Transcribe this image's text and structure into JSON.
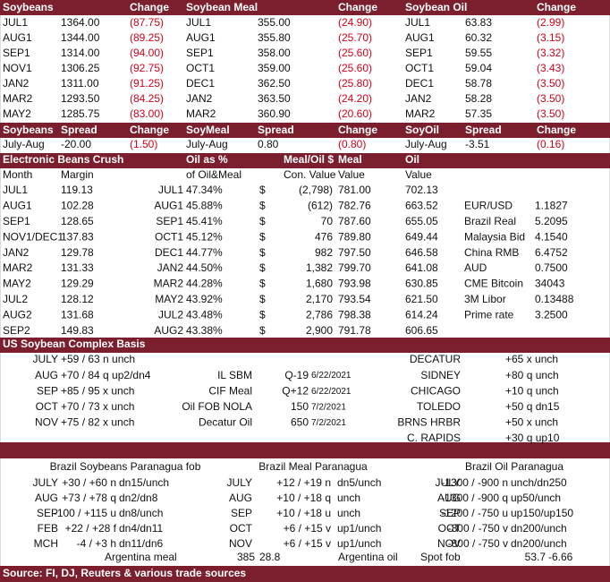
{
  "prices": {
    "headers": [
      "Soybeans",
      "Change",
      "Soybean Meal",
      "Change",
      "Soybean Oil",
      "Change"
    ],
    "rows": [
      [
        "JUL1",
        "1364.00",
        "(87.75)",
        "JUL1",
        "355.00",
        "(24.90)",
        "JUL1",
        "63.83",
        "(2.99)"
      ],
      [
        "AUG1",
        "1344.00",
        "(89.25)",
        "AUG1",
        "355.80",
        "(25.70)",
        "AUG1",
        "60.32",
        "(3.15)"
      ],
      [
        "SEP1",
        "1314.00",
        "(94.00)",
        "SEP1",
        "358.00",
        "(25.60)",
        "SEP1",
        "59.55",
        "(3.32)"
      ],
      [
        "NOV1",
        "1306.25",
        "(92.75)",
        "OCT1",
        "359.00",
        "(25.60)",
        "OCT1",
        "59.04",
        "(3.43)"
      ],
      [
        "JAN2",
        "1311.00",
        "(91.25)",
        "DEC1",
        "362.50",
        "(25.80)",
        "DEC1",
        "58.78",
        "(3.50)"
      ],
      [
        "MAR2",
        "1293.50",
        "(84.25)",
        "JAN2",
        "363.50",
        "(24.20)",
        "JAN2",
        "58.28",
        "(3.50)"
      ],
      [
        "MAY2",
        "1285.75",
        "(83.00)",
        "MAR2",
        "360.90",
        "(20.60)",
        "MAR2",
        "57.35",
        "(3.50)"
      ]
    ]
  },
  "spreads": {
    "headers": [
      "Soybeans",
      "Spread",
      "Change",
      "SoyMeal",
      "Spread",
      "Change",
      "SoyOil",
      "Spread",
      "Change"
    ],
    "rows": [
      [
        "July-Aug",
        "-20.00",
        "(1.50)",
        "July-Aug",
        "0.80",
        "(0.80)",
        "July-Aug",
        "-3.51",
        "(0.16)"
      ]
    ]
  },
  "crush": {
    "headers": [
      "Electronic Beans Crush",
      "Oil as %",
      "Meal/Oil $",
      "Meal",
      "Oil"
    ],
    "subheaders": [
      "Month",
      "Margin",
      "of Oil&Meal",
      "Con. Value",
      "Value",
      "Value"
    ],
    "rows": [
      [
        "JUL1",
        "119.13",
        "JUL1",
        "47.34%",
        "$",
        "(2,798)",
        "781.00",
        "702.13",
        null,
        null
      ],
      [
        "AUG1",
        "102.28",
        "AUG1",
        "45.88%",
        "$",
        "(612)",
        "782.76",
        "663.52",
        "EUR/USD",
        "1.1827"
      ],
      [
        "SEP1",
        "128.65",
        "SEP1",
        "45.41%",
        "$",
        "70",
        "787.60",
        "655.05",
        "Brazil Real",
        "5.2095"
      ],
      [
        "NOV1/DEC1",
        "137.83",
        "OCT1",
        "45.12%",
        "$",
        "476",
        "789.80",
        "649.44",
        "Malaysia Bid",
        "4.1540"
      ],
      [
        "JAN2",
        "129.78",
        "DEC1",
        "44.77%",
        "$",
        "982",
        "797.50",
        "646.58",
        "China RMB",
        "6.4752"
      ],
      [
        "MAR2",
        "131.33",
        "JAN2",
        "44.50%",
        "$",
        "1,382",
        "799.70",
        "641.08",
        "AUD",
        "0.7500"
      ],
      [
        "MAY2",
        "129.29",
        "MAR2",
        "44.28%",
        "$",
        "1,680",
        "793.98",
        "630.85",
        "CME Bitcoin",
        "34043"
      ],
      [
        "JUL2",
        "128.12",
        "MAY2",
        "43.92%",
        "$",
        "2,170",
        "793.54",
        "621.50",
        "3M Libor",
        "0.13488"
      ],
      [
        "AUG2",
        "131.68",
        "JUL2",
        "43.48%",
        "$",
        "2,786",
        "798.38",
        "614.24",
        "Prime rate",
        "3.2500"
      ],
      [
        "SEP2",
        "149.83",
        "AUG2",
        "43.38%",
        "$",
        "2,900",
        "791.78",
        "606.65",
        null,
        null
      ]
    ]
  },
  "basis": {
    "title": "US Soybean Complex Basis",
    "rows": [
      [
        "JULY",
        "+59 / 63 n unch",
        null,
        null,
        null,
        "DECATUR",
        "+65 x unch"
      ],
      [
        "AUG",
        "+70 / 84 q up2/dn4",
        "IL SBM",
        "Q-19",
        "6/22/2021",
        "SIDNEY",
        "+80 q unch"
      ],
      [
        "SEP",
        "+85 / 95 x unch",
        "CIF Meal",
        "Q+12",
        "6/22/2021",
        "CHICAGO",
        "+10 q unch"
      ],
      [
        "OCT",
        "+70 / 73 x unch",
        "Oil FOB NOLA",
        "150",
        "7/2/2021",
        "TOLEDO",
        "+50 q dn15"
      ],
      [
        "NOV",
        "+75 / 82 x unch",
        "Decatur Oil",
        "650",
        "7/2/2021",
        "BRNS HRBR",
        "+50 x unch"
      ],
      [
        null,
        null,
        null,
        null,
        null,
        "C. RAPIDS",
        "+30 q up10"
      ]
    ]
  },
  "brazil": {
    "headers": [
      "Brazil Soybeans Paranagua fob",
      "Brazil Meal Paranagua",
      "Brazil Oil Paranagua"
    ],
    "rows": [
      [
        "JULY",
        "+30 / +60 n",
        "dn15/unch",
        "JULY",
        "+12 / +19 n",
        "dn5/unch",
        "JULY",
        "-1300 / -900 n",
        "unch/dn250"
      ],
      [
        "AUG",
        "+73 / +78 q",
        "dn2/dn8",
        "AUG",
        "+10 / +18 q",
        "unch",
        "AUG",
        "-1300 / -900 q",
        "up50/unch"
      ],
      [
        "SEP",
        "-100 / +115 u",
        "dn8/unch",
        "SEP",
        "+10 / +18 u",
        "unch",
        "SEP",
        "-1200 / -750 u",
        "up150/up150"
      ],
      [
        "FEB",
        "+22 / +28 f",
        "dn4/dn11",
        "OCT",
        "+6 / +15 v",
        "up1/unch",
        "OCT",
        "-800 / -750 v",
        "dn200/unch"
      ],
      [
        "MCH",
        "-4 / +3 h",
        "dn11/dn6",
        "NOV",
        "+6 / +15 v",
        "up1/unch",
        "NOV",
        "-800 / -750 v",
        "dn200/unch"
      ]
    ],
    "argentina": [
      "Argentina meal",
      "385",
      "28.8",
      "Argentina oil",
      "Spot fob",
      "53.7",
      "-6.66"
    ]
  },
  "source": "Source: FI, DJ, Reuters & various trade sources"
}
